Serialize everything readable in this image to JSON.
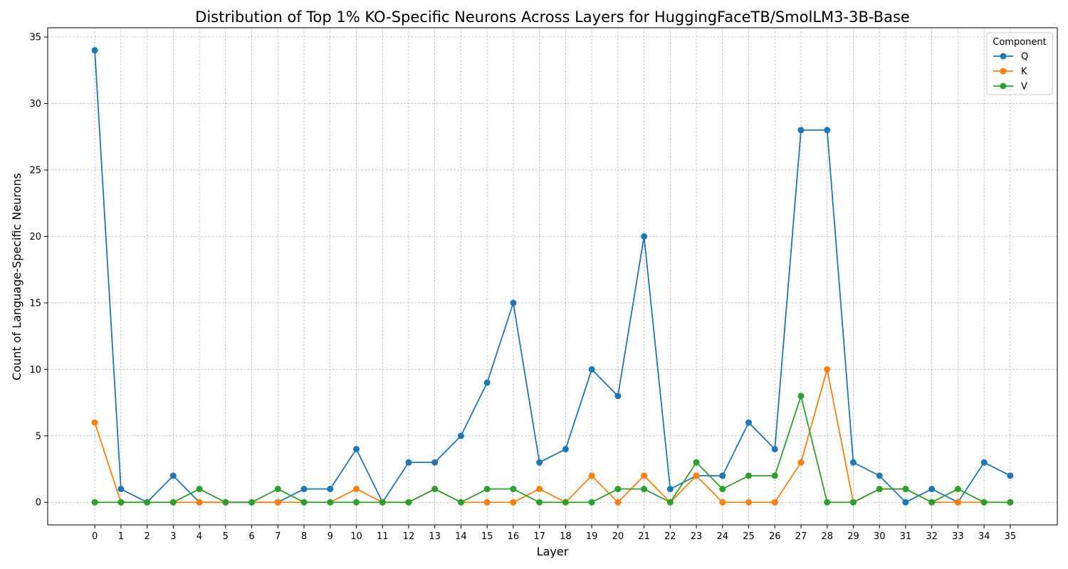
{
  "chart_data": {
    "type": "line",
    "title": "Distribution of Top 1% KO-Specific Neurons Across Layers for HuggingFaceTB/SmolLM3-3B-Base",
    "xlabel": "Layer",
    "ylabel": "Count of Language-Specific Neurons",
    "x": [
      0,
      1,
      2,
      3,
      4,
      5,
      6,
      7,
      8,
      9,
      10,
      11,
      12,
      13,
      14,
      15,
      16,
      17,
      18,
      19,
      20,
      21,
      22,
      23,
      24,
      25,
      26,
      27,
      28,
      29,
      30,
      31,
      32,
      33,
      34,
      35
    ],
    "xlim": [
      -1.8,
      36.8
    ],
    "ylim": [
      -1.7,
      35.7
    ],
    "yticks": [
      0,
      5,
      10,
      15,
      20,
      25,
      30,
      35
    ],
    "grid": true,
    "legend": {
      "title": "Component",
      "placement": "top-right"
    },
    "series": [
      {
        "name": "Q",
        "color": "#1f77b4",
        "values": [
          34,
          1,
          0,
          2,
          0,
          0,
          0,
          0,
          1,
          1,
          4,
          0,
          3,
          3,
          5,
          9,
          15,
          3,
          4,
          10,
          8,
          20,
          1,
          2,
          2,
          6,
          4,
          28,
          28,
          3,
          2,
          0,
          1,
          0,
          3,
          2
        ]
      },
      {
        "name": "K",
        "color": "#ff7f0e",
        "values": [
          6,
          0,
          0,
          0,
          0,
          0,
          0,
          0,
          0,
          0,
          1,
          0,
          0,
          1,
          0,
          0,
          0,
          1,
          0,
          2,
          0,
          2,
          0,
          2,
          0,
          0,
          0,
          3,
          10,
          0,
          1,
          1,
          0,
          0,
          0,
          0
        ]
      },
      {
        "name": "V",
        "color": "#2ca02c",
        "values": [
          0,
          0,
          0,
          0,
          1,
          0,
          0,
          1,
          0,
          0,
          0,
          0,
          0,
          1,
          0,
          1,
          1,
          0,
          0,
          0,
          1,
          1,
          0,
          3,
          1,
          2,
          2,
          8,
          0,
          0,
          1,
          1,
          0,
          1,
          0,
          0
        ]
      }
    ]
  }
}
